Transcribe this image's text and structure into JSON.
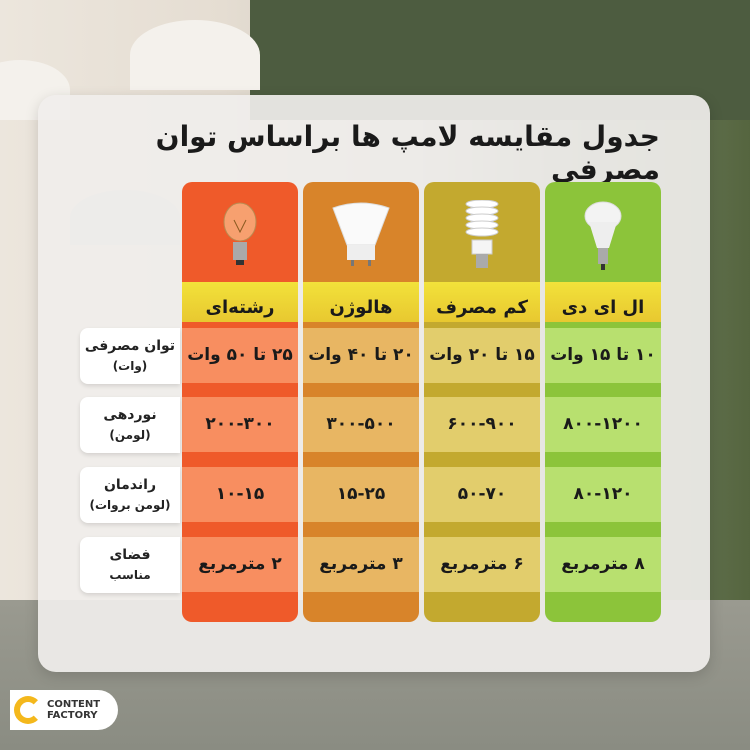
{
  "title": "جدول مقایسه لامپ ها براساس توان مصرفی",
  "columns": [
    {
      "name": "رشته‌ای",
      "icon": "incandescent-bulb-icon",
      "head_color": "#ef5a2a",
      "cell_color": "#f88e60",
      "values": [
        "۲۵ تا ۵۰ وات",
        "۲۰۰-۳۰۰",
        "۱۰-۱۵",
        "۲ مترمربع"
      ]
    },
    {
      "name": "هالوژن",
      "icon": "halogen-bulb-icon",
      "head_color": "#d8842a",
      "cell_color": "#e8b663",
      "values": [
        "۲۰ تا ۴۰ وات",
        "۳۰۰-۵۰۰",
        "۱۵-۲۵",
        "۳ مترمربع"
      ]
    },
    {
      "name": "کم مصرف",
      "icon": "cfl-bulb-icon",
      "head_color": "#c3a92f",
      "cell_color": "#e2cd6c",
      "values": [
        "۱۵ تا ۲۰ وات",
        "۶۰۰-۹۰۰",
        "۵۰-۷۰",
        "۶ مترمربع"
      ]
    },
    {
      "name": "ال ای دی",
      "icon": "led-bulb-icon",
      "head_color": "#8cc43a",
      "cell_color": "#b8e06f",
      "values": [
        "۱۰ تا ۱۵ وات",
        "۸۰۰-۱۲۰۰",
        "۸۰-۱۲۰",
        "۸ مترمربع"
      ]
    }
  ],
  "rows": [
    {
      "label": "توان مصرفی",
      "sub": "(وات)"
    },
    {
      "label": "نوردهی",
      "sub": "(لومن)"
    },
    {
      "label": "راندمان",
      "sub": "(لومن بروات)"
    },
    {
      "label": "فضای",
      "sub": "مناسب"
    }
  ],
  "logo": {
    "line1": "CONTENT",
    "line2": "FACTORY"
  }
}
